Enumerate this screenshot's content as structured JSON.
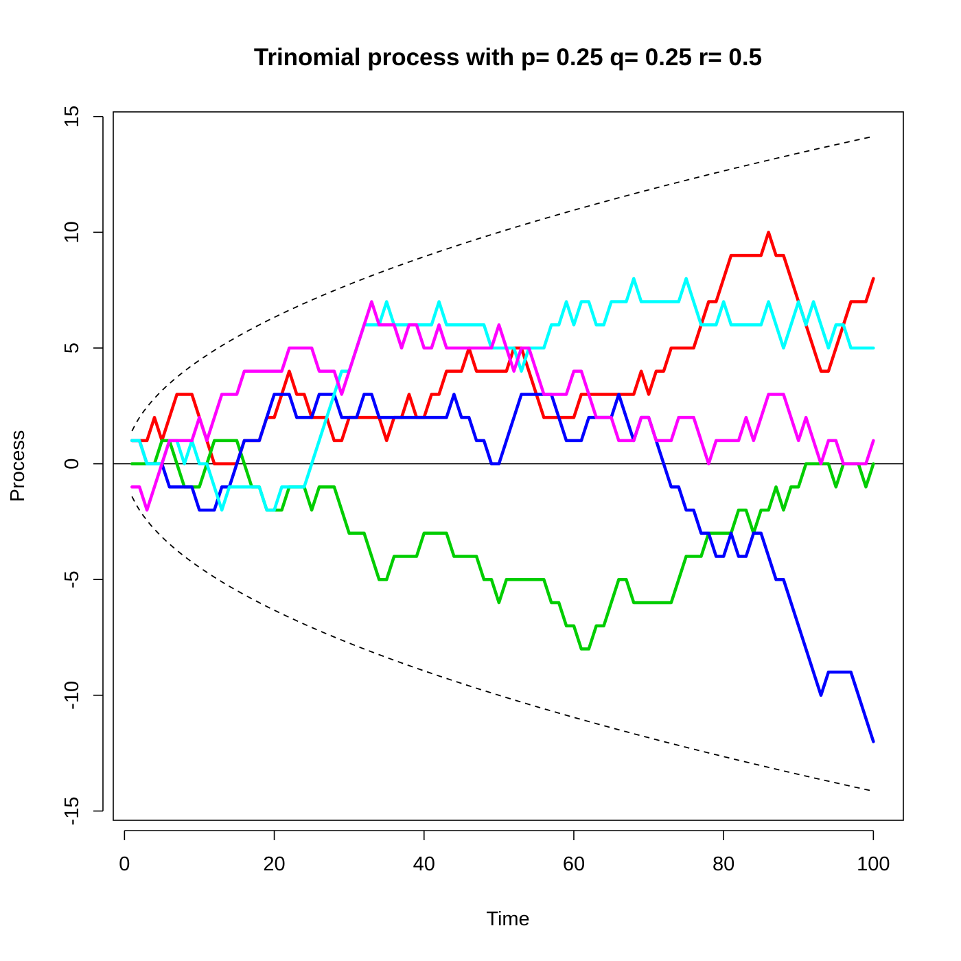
{
  "chart_data": {
    "type": "line",
    "title": "Trinomial process with p= 0.25 q= 0.25 r= 0.5",
    "xlabel": "Time",
    "ylabel": "Process",
    "xlim": [
      -1.5,
      104
    ],
    "ylim": [
      -15.4,
      15.2
    ],
    "xticks": [
      0,
      20,
      40,
      60,
      80,
      100
    ],
    "yticks": [
      -15,
      -10,
      -5,
      0,
      5,
      10,
      15
    ],
    "xtick_labels": [
      "0",
      "20",
      "40",
      "60",
      "80",
      "100"
    ],
    "ytick_labels": [
      "-15",
      "-10",
      "-5",
      "0",
      "5",
      "10",
      "15"
    ],
    "x": [
      1,
      2,
      3,
      4,
      5,
      6,
      7,
      8,
      9,
      10,
      11,
      12,
      13,
      14,
      15,
      16,
      17,
      18,
      19,
      20,
      21,
      22,
      23,
      24,
      25,
      26,
      27,
      28,
      29,
      30,
      31,
      32,
      33,
      34,
      35,
      36,
      37,
      38,
      39,
      40,
      41,
      42,
      43,
      44,
      45,
      46,
      47,
      48,
      49,
      50,
      51,
      52,
      53,
      54,
      55,
      56,
      57,
      58,
      59,
      60,
      61,
      62,
      63,
      64,
      65,
      66,
      67,
      68,
      69,
      70,
      71,
      72,
      73,
      74,
      75,
      76,
      77,
      78,
      79,
      80,
      81,
      82,
      83,
      84,
      85,
      86,
      87,
      88,
      89,
      90,
      91,
      92,
      93,
      94,
      95,
      96,
      97,
      98,
      99,
      100
    ],
    "series": [
      {
        "color": "#ff0000",
        "values": [
          1,
          1,
          1,
          2,
          1,
          2,
          3,
          3,
          3,
          2,
          1,
          0,
          0,
          0,
          0,
          1,
          1,
          1,
          2,
          2,
          3,
          4,
          3,
          3,
          2,
          2,
          2,
          1,
          1,
          2,
          2,
          2,
          2,
          2,
          1,
          2,
          2,
          3,
          2,
          2,
          3,
          3,
          4,
          4,
          4,
          5,
          4,
          4,
          4,
          4,
          4,
          5,
          5,
          4,
          3,
          2,
          2,
          2,
          2,
          2,
          3,
          3,
          3,
          3,
          3,
          3,
          3,
          3,
          4,
          3,
          4,
          4,
          5,
          5,
          5,
          5,
          6,
          7,
          7,
          8,
          9,
          9,
          9,
          9,
          9,
          10,
          9,
          9,
          8,
          7,
          6,
          5,
          4,
          4,
          5,
          6,
          7,
          7,
          7,
          8
        ]
      },
      {
        "color": "#00cd00",
        "values": [
          0,
          0,
          0,
          0,
          1,
          1,
          0,
          -1,
          -1,
          -1,
          0,
          1,
          1,
          1,
          1,
          0,
          -1,
          -1,
          -2,
          -2,
          -2,
          -1,
          -1,
          -1,
          -2,
          -1,
          -1,
          -1,
          -2,
          -3,
          -3,
          -3,
          -4,
          -5,
          -5,
          -4,
          -4,
          -4,
          -4,
          -3,
          -3,
          -3,
          -3,
          -4,
          -4,
          -4,
          -4,
          -5,
          -5,
          -6,
          -5,
          -5,
          -5,
          -5,
          -5,
          -5,
          -6,
          -6,
          -7,
          -7,
          -8,
          -8,
          -7,
          -7,
          -6,
          -5,
          -5,
          -6,
          -6,
          -6,
          -6,
          -6,
          -6,
          -5,
          -4,
          -4,
          -4,
          -3,
          -3,
          -3,
          -3,
          -2,
          -2,
          -3,
          -2,
          -2,
          -1,
          -2,
          -1,
          -1,
          0,
          0,
          0,
          0,
          -1,
          0,
          0,
          0,
          -1,
          0
        ]
      },
      {
        "color": "#0000ff",
        "values": [
          1,
          1,
          0,
          0,
          0,
          -1,
          -1,
          -1,
          -1,
          -2,
          -2,
          -2,
          -1,
          -1,
          0,
          1,
          1,
          1,
          2,
          3,
          3,
          3,
          2,
          2,
          2,
          3,
          3,
          3,
          2,
          2,
          2,
          3,
          3,
          2,
          2,
          2,
          2,
          2,
          2,
          2,
          2,
          2,
          2,
          3,
          2,
          2,
          1,
          1,
          0,
          0,
          1,
          2,
          3,
          3,
          3,
          3,
          3,
          2,
          1,
          1,
          1,
          2,
          2,
          2,
          2,
          3,
          2,
          1,
          2,
          2,
          1,
          0,
          -1,
          -1,
          -2,
          -2,
          -3,
          -3,
          -4,
          -4,
          -3,
          -4,
          -4,
          -3,
          -3,
          -4,
          -5,
          -5,
          -6,
          -7,
          -8,
          -9,
          -10,
          -9,
          -9,
          -9,
          -9,
          -10,
          -11,
          -12
        ]
      },
      {
        "color": "#00ffff",
        "values": [
          1,
          1,
          0,
          0,
          0,
          1,
          1,
          0,
          1,
          0,
          0,
          -1,
          -2,
          -1,
          -1,
          -1,
          -1,
          -1,
          -2,
          -2,
          -1,
          -1,
          -1,
          -1,
          0,
          1,
          2,
          3,
          4,
          4,
          5,
          6,
          6,
          6,
          7,
          6,
          6,
          6,
          6,
          6,
          6,
          7,
          6,
          6,
          6,
          6,
          6,
          6,
          5,
          5,
          5,
          5,
          4,
          5,
          5,
          5,
          6,
          6,
          7,
          6,
          7,
          7,
          6,
          6,
          7,
          7,
          7,
          8,
          7,
          7,
          7,
          7,
          7,
          7,
          8,
          7,
          6,
          6,
          6,
          7,
          6,
          6,
          6,
          6,
          6,
          7,
          6,
          5,
          6,
          7,
          6,
          7,
          6,
          5,
          6,
          6,
          5,
          5,
          5,
          5
        ]
      },
      {
        "color": "#ff00ff",
        "values": [
          -1,
          -1,
          -2,
          -1,
          0,
          1,
          1,
          1,
          1,
          2,
          1,
          2,
          3,
          3,
          3,
          4,
          4,
          4,
          4,
          4,
          4,
          5,
          5,
          5,
          5,
          4,
          4,
          4,
          3,
          4,
          5,
          6,
          7,
          6,
          6,
          6,
          5,
          6,
          6,
          5,
          5,
          6,
          5,
          5,
          5,
          5,
          5,
          5,
          5,
          6,
          5,
          4,
          5,
          5,
          4,
          3,
          3,
          3,
          3,
          4,
          4,
          3,
          2,
          2,
          2,
          1,
          1,
          1,
          2,
          2,
          1,
          1,
          1,
          2,
          2,
          2,
          1,
          0,
          1,
          1,
          1,
          1,
          2,
          1,
          2,
          3,
          3,
          3,
          2,
          1,
          2,
          1,
          0,
          1,
          1,
          0,
          0,
          0,
          0,
          1
        ]
      }
    ],
    "bands": {
      "style": "dashed",
      "formula": "±sqrt(2*t)"
    },
    "hline": 0
  }
}
